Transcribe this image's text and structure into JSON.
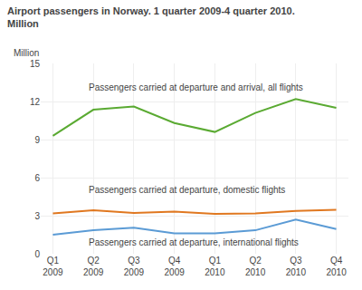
{
  "chart_data": {
    "type": "line",
    "title": "Airport passengers in Norway. 1 quarter 2009-4 quarter 2010.",
    "subtitle": "Million",
    "y_label": "Million",
    "categories": [
      "Q1\n2009",
      "Q2\n2009",
      "Q3\n2009",
      "Q4\n2009",
      "Q1\n2010",
      "Q2\n2010",
      "Q3\n2010",
      "Q4\n2010"
    ],
    "series": [
      {
        "name": "Passengers carried at departure and arrival, all flights",
        "color": "#5aaa32",
        "values": [
          9.3,
          11.35,
          11.6,
          10.3,
          9.6,
          11.1,
          12.2,
          11.5
        ]
      },
      {
        "name": "Passengers carried at departure, domestic flights",
        "color": "#e07820",
        "values": [
          3.18,
          3.42,
          3.22,
          3.32,
          3.15,
          3.17,
          3.38,
          3.47
        ]
      },
      {
        "name": "Passengers carried at departure, international flights",
        "color": "#5b9bd5",
        "values": [
          1.5,
          1.85,
          2.05,
          1.6,
          1.6,
          1.85,
          2.7,
          1.95
        ]
      }
    ],
    "ylim": [
      0,
      15
    ],
    "yticks": [
      0,
      3,
      6,
      9,
      12,
      15
    ],
    "grid": true
  }
}
